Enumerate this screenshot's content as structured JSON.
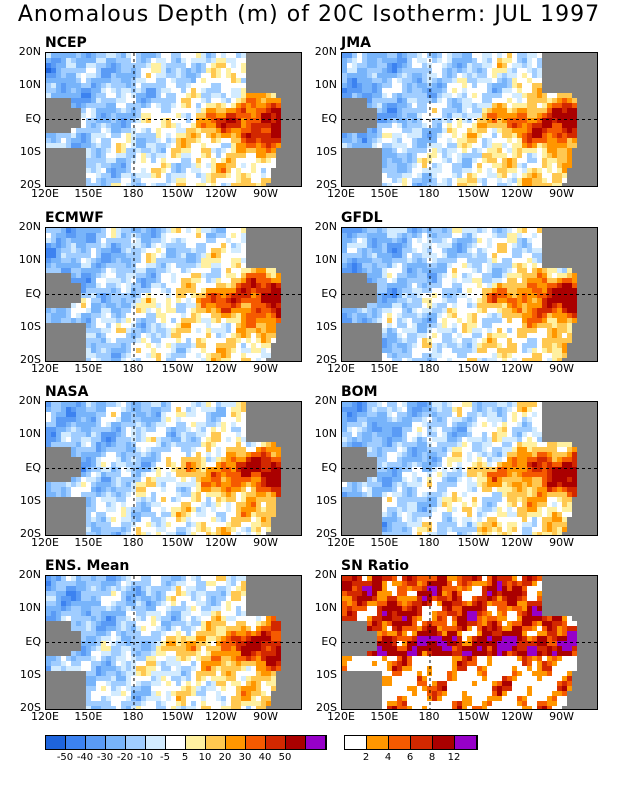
{
  "title": "Anomalous Depth (m) of 20C Isotherm: JUL 1997",
  "axes": {
    "x_ticks": [
      "120E",
      "150E",
      "180",
      "150W",
      "120W",
      "90W"
    ],
    "y_ticks": [
      "20N",
      "10N",
      "EQ",
      "10S",
      "20S"
    ]
  },
  "chart_data": [
    {
      "type": "heatmap",
      "title": "NCEP",
      "x": [
        "120E",
        "150E",
        "180",
        "150W",
        "120W",
        "90W"
      ],
      "y": [
        "20N",
        "10N",
        "EQ",
        "10S",
        "20S"
      ],
      "units": "m"
    },
    {
      "type": "heatmap",
      "title": "JMA",
      "x": [
        "120E",
        "150E",
        "180",
        "150W",
        "120W",
        "90W"
      ],
      "y": [
        "20N",
        "10N",
        "EQ",
        "10S",
        "20S"
      ],
      "units": "m"
    },
    {
      "type": "heatmap",
      "title": "ECMWF",
      "x": [
        "120E",
        "150E",
        "180",
        "150W",
        "120W",
        "90W"
      ],
      "y": [
        "20N",
        "10N",
        "EQ",
        "10S",
        "20S"
      ],
      "units": "m"
    },
    {
      "type": "heatmap",
      "title": "GFDL",
      "x": [
        "120E",
        "150E",
        "180",
        "150W",
        "120W",
        "90W"
      ],
      "y": [
        "20N",
        "10N",
        "EQ",
        "10S",
        "20S"
      ],
      "units": "m"
    },
    {
      "type": "heatmap",
      "title": "NASA",
      "x": [
        "120E",
        "150E",
        "180",
        "150W",
        "120W",
        "90W"
      ],
      "y": [
        "20N",
        "10N",
        "EQ",
        "10S",
        "20S"
      ],
      "units": "m"
    },
    {
      "type": "heatmap",
      "title": "BOM",
      "x": [
        "120E",
        "150E",
        "180",
        "150W",
        "120W",
        "90W"
      ],
      "y": [
        "20N",
        "10N",
        "EQ",
        "10S",
        "20S"
      ],
      "units": "m"
    },
    {
      "type": "heatmap",
      "title": "ENS. Mean",
      "x": [
        "120E",
        "150E",
        "180",
        "150W",
        "120W",
        "90W"
      ],
      "y": [
        "20N",
        "10N",
        "EQ",
        "10S",
        "20S"
      ],
      "units": "m"
    },
    {
      "type": "heatmap",
      "title": "SN Ratio",
      "x": [
        "120E",
        "150E",
        "180",
        "150W",
        "120W",
        "90W"
      ],
      "y": [
        "20N",
        "10N",
        "EQ",
        "10S",
        "20S"
      ]
    }
  ],
  "colorbars": {
    "depth": {
      "labels": [
        "-50",
        "-40",
        "-30",
        "-20",
        "-10",
        "-5",
        "5",
        "10",
        "20",
        "30",
        "40",
        "50"
      ],
      "colors": [
        "#1e64dc",
        "#3c82f0",
        "#5a9bf5",
        "#78b4fa",
        "#a0cdff",
        "#d2ebff",
        "#ffffff",
        "#fff0a0",
        "#ffc850",
        "#ff9600",
        "#f55a00",
        "#d22800",
        "#aa0000",
        "#9600c8"
      ]
    },
    "ratio": {
      "labels": [
        "2",
        "4",
        "6",
        "8",
        "12"
      ],
      "colors": [
        "#ffffff",
        "#ff9600",
        "#f55a00",
        "#d22800",
        "#aa0000",
        "#9600c8"
      ]
    }
  },
  "colors": {
    "land": "#808080",
    "background": "#ffffff"
  }
}
